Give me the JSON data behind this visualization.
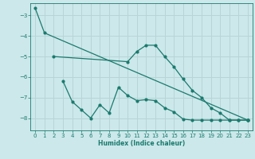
{
  "bg_color": "#cce8ea",
  "line_color": "#1a7a6e",
  "grid_color": "#b8d4d6",
  "xlabel": "Humidex (Indice chaleur)",
  "ylim": [
    -8.6,
    -2.4
  ],
  "xlim": [
    -0.5,
    23.5
  ],
  "yticks": [
    -8,
    -7,
    -6,
    -5,
    -4,
    -3
  ],
  "xticks": [
    0,
    1,
    2,
    3,
    4,
    5,
    6,
    7,
    8,
    9,
    10,
    11,
    12,
    13,
    14,
    15,
    16,
    17,
    18,
    19,
    20,
    21,
    22,
    23
  ],
  "line1": {
    "x": [
      0,
      1,
      23
    ],
    "y": [
      -2.65,
      -3.85,
      -8.1
    ]
  },
  "line2": {
    "x": [
      2,
      10,
      11,
      12,
      13,
      14,
      15,
      16,
      17,
      18,
      19,
      20,
      21,
      22,
      23
    ],
    "y": [
      -5.0,
      -5.25,
      -4.75,
      -4.45,
      -4.45,
      -5.0,
      -5.5,
      -6.1,
      -6.65,
      -7.0,
      -7.5,
      -7.75,
      -8.1,
      -8.1,
      -8.1
    ]
  },
  "line3": {
    "x": [
      3,
      4,
      5,
      6,
      7,
      8,
      9,
      10,
      11,
      12,
      13,
      14,
      15,
      16,
      17,
      18,
      19,
      20,
      21,
      22,
      23
    ],
    "y": [
      -6.2,
      -7.2,
      -7.6,
      -8.0,
      -7.35,
      -7.75,
      -6.5,
      -6.9,
      -7.15,
      -7.1,
      -7.15,
      -7.5,
      -7.7,
      -8.05,
      -8.1,
      -8.1,
      -8.1,
      -8.1,
      -8.1,
      -8.1,
      -8.1
    ]
  }
}
